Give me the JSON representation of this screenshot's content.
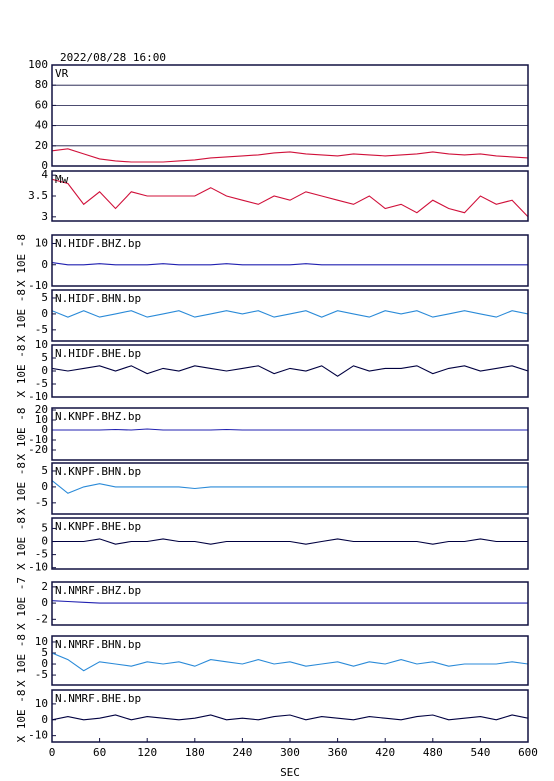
{
  "chart_data": [
    {
      "type": "line",
      "title": "2022/08/28 16:00",
      "label": "VR",
      "color": "#d0103a",
      "grid": true,
      "xlim": [
        0,
        600
      ],
      "ylim": [
        0,
        100
      ],
      "yticks": [
        0,
        20,
        40,
        60,
        80,
        100
      ],
      "x": [
        0,
        20,
        40,
        60,
        80,
        100,
        120,
        140,
        160,
        180,
        200,
        220,
        240,
        260,
        280,
        300,
        320,
        340,
        360,
        380,
        400,
        420,
        440,
        460,
        480,
        500,
        520,
        540,
        560,
        580,
        600
      ],
      "values": [
        15,
        17,
        12,
        7,
        5,
        4,
        4,
        4,
        5,
        6,
        8,
        9,
        10,
        11,
        13,
        14,
        12,
        11,
        10,
        12,
        11,
        10,
        11,
        12,
        14,
        12,
        11,
        12,
        10,
        9,
        8
      ]
    },
    {
      "type": "line",
      "label": "Mw",
      "color": "#d0103a",
      "xlim": [
        0,
        600
      ],
      "ylim": [
        2.9,
        4.1
      ],
      "yticks": [
        3.0,
        3.5,
        4.0
      ],
      "x": [
        0,
        20,
        40,
        60,
        80,
        100,
        120,
        140,
        160,
        180,
        200,
        220,
        240,
        260,
        280,
        300,
        320,
        340,
        360,
        380,
        400,
        420,
        440,
        460,
        480,
        500,
        520,
        540,
        560,
        580,
        600
      ],
      "values": [
        3.9,
        3.8,
        3.3,
        3.6,
        3.2,
        3.6,
        3.5,
        3.5,
        3.5,
        3.5,
        3.7,
        3.5,
        3.4,
        3.3,
        3.5,
        3.4,
        3.6,
        3.5,
        3.4,
        3.3,
        3.5,
        3.2,
        3.3,
        3.1,
        3.4,
        3.2,
        3.1,
        3.5,
        3.3,
        3.4,
        3.0
      ]
    },
    {
      "type": "line",
      "label": "N.HIDF.BHZ.bp",
      "y_label": "X 10E -8",
      "color": "#2020b0",
      "xlim": [
        0,
        600
      ],
      "ylim": [
        -10,
        14
      ],
      "yticks": [
        -10,
        0,
        10
      ],
      "x": [
        0,
        20,
        40,
        60,
        80,
        100,
        120,
        140,
        160,
        180,
        200,
        220,
        240,
        260,
        280,
        300,
        320,
        340,
        360,
        380,
        400,
        420,
        440,
        460,
        480,
        500,
        520,
        540,
        560,
        580,
        600
      ],
      "values": [
        1,
        0,
        0,
        0.5,
        0,
        0,
        0,
        0.5,
        0,
        0,
        0,
        0.5,
        0,
        0,
        0,
        0,
        0.5,
        0,
        0,
        0,
        0,
        0,
        0,
        0,
        0,
        0,
        0,
        0,
        0,
        0,
        0
      ]
    },
    {
      "type": "line",
      "label": "N.HIDF.BHN.bp",
      "y_label": "X 10E -8",
      "color": "#2a8ad8",
      "xlim": [
        0,
        600
      ],
      "ylim": [
        -8.5,
        7.5
      ],
      "yticks": [
        -5,
        0,
        5
      ],
      "x": [
        0,
        20,
        40,
        60,
        80,
        100,
        120,
        140,
        160,
        180,
        200,
        220,
        240,
        260,
        280,
        300,
        320,
        340,
        360,
        380,
        400,
        420,
        440,
        460,
        480,
        500,
        520,
        540,
        560,
        580,
        600
      ],
      "values": [
        1,
        -1,
        1,
        -1,
        0,
        1,
        -1,
        0,
        1,
        -1,
        0,
        1,
        0,
        1,
        -1,
        0,
        1,
        -1,
        1,
        0,
        -1,
        1,
        0,
        1,
        -1,
        0,
        1,
        0,
        -1,
        1,
        0
      ]
    },
    {
      "type": "line",
      "label": "N.HIDF.BHE.bp",
      "y_label": "X 10E -8",
      "color": "#000040",
      "xlim": [
        0,
        600
      ],
      "ylim": [
        -10,
        10
      ],
      "yticks": [
        -10,
        -5,
        0,
        5,
        10
      ],
      "x": [
        0,
        20,
        40,
        60,
        80,
        100,
        120,
        140,
        160,
        180,
        200,
        220,
        240,
        260,
        280,
        300,
        320,
        340,
        360,
        380,
        400,
        420,
        440,
        460,
        480,
        500,
        520,
        540,
        560,
        580,
        600
      ],
      "values": [
        1,
        0,
        1,
        2,
        0,
        2,
        -1,
        1,
        0,
        2,
        1,
        0,
        1,
        2,
        -1,
        1,
        0,
        2,
        -2,
        2,
        0,
        1,
        1,
        2,
        -1,
        1,
        2,
        0,
        1,
        2,
        0
      ]
    },
    {
      "type": "line",
      "label": "N.KNPF.BHZ.bp",
      "y_label": "X 10E -8",
      "color": "#2020b0",
      "xlim": [
        0,
        600
      ],
      "ylim": [
        -30,
        22
      ],
      "yticks": [
        -20,
        -10,
        0,
        10,
        20
      ],
      "x": [
        0,
        20,
        40,
        60,
        80,
        100,
        120,
        140,
        160,
        180,
        200,
        220,
        240,
        260,
        280,
        300,
        320,
        340,
        360,
        380,
        400,
        420,
        440,
        460,
        480,
        500,
        520,
        540,
        560,
        580,
        600
      ],
      "values": [
        0,
        0,
        0,
        0,
        0.5,
        0,
        1,
        0,
        0,
        0,
        0,
        0.5,
        0,
        0,
        0,
        0,
        0,
        0,
        0,
        0,
        0,
        0,
        0,
        0,
        0,
        0,
        0,
        0,
        0,
        0,
        0
      ]
    },
    {
      "type": "line",
      "label": "N.KNPF.BHN.bp",
      "y_label": "X 10E -8",
      "color": "#2a8ad8",
      "xlim": [
        0,
        600
      ],
      "ylim": [
        -8.5,
        7.5
      ],
      "yticks": [
        -5,
        0,
        5
      ],
      "x": [
        0,
        20,
        40,
        60,
        80,
        100,
        120,
        140,
        160,
        180,
        200,
        220,
        240,
        260,
        280,
        300,
        320,
        340,
        360,
        380,
        400,
        420,
        440,
        460,
        480,
        500,
        520,
        540,
        560,
        580,
        600
      ],
      "values": [
        2,
        -2,
        0,
        1,
        0,
        0,
        0,
        0,
        0,
        -0.5,
        0,
        0,
        0,
        0,
        0,
        0,
        0,
        0,
        0,
        0,
        0,
        0,
        0,
        0,
        0,
        0,
        0,
        0,
        0,
        0,
        0
      ]
    },
    {
      "type": "line",
      "label": "N.KNPF.BHE.bp",
      "y_label": "X 10E -8",
      "color": "#000040",
      "xlim": [
        0,
        600
      ],
      "ylim": [
        -10.5,
        9
      ],
      "yticks": [
        -10,
        -5,
        0,
        5
      ],
      "x": [
        0,
        20,
        40,
        60,
        80,
        100,
        120,
        140,
        160,
        180,
        200,
        220,
        240,
        260,
        280,
        300,
        320,
        340,
        360,
        380,
        400,
        420,
        440,
        460,
        480,
        500,
        520,
        540,
        560,
        580,
        600
      ],
      "values": [
        0,
        0,
        0,
        1,
        -1,
        0,
        0,
        1,
        0,
        0,
        -1,
        0,
        0,
        0,
        0,
        0,
        -1,
        0,
        1,
        0,
        0,
        0,
        0,
        0,
        -1,
        0,
        0,
        1,
        0,
        0,
        0
      ]
    },
    {
      "type": "line",
      "label": "N.NMRF.BHZ.bp",
      "y_label": "X 10E -7",
      "color": "#2020b0",
      "xlim": [
        0,
        600
      ],
      "ylim": [
        -2.7,
        2.6
      ],
      "yticks": [
        -2,
        0,
        2
      ],
      "x": [
        0,
        20,
        40,
        60,
        80,
        100,
        120,
        140,
        160,
        180,
        200,
        220,
        240,
        260,
        280,
        300,
        320,
        340,
        360,
        380,
        400,
        420,
        440,
        460,
        480,
        500,
        520,
        540,
        560,
        580,
        600
      ],
      "values": [
        0.3,
        0.2,
        0.1,
        0,
        0,
        0,
        0,
        0,
        0,
        0,
        0,
        0,
        0,
        0,
        0,
        0,
        0,
        0,
        0,
        0,
        0,
        0,
        0,
        0,
        0,
        0,
        0,
        0,
        0,
        0,
        0
      ]
    },
    {
      "type": "line",
      "label": "N.NMRF.BHN.bp",
      "y_label": "X 10E -8",
      "color": "#2a8ad8",
      "xlim": [
        0,
        600
      ],
      "ylim": [
        -9.5,
        12.7
      ],
      "yticks": [
        -5,
        0,
        5,
        10
      ],
      "x": [
        0,
        20,
        40,
        60,
        80,
        100,
        120,
        140,
        160,
        180,
        200,
        220,
        240,
        260,
        280,
        300,
        320,
        340,
        360,
        380,
        400,
        420,
        440,
        460,
        480,
        500,
        520,
        540,
        560,
        580,
        600
      ],
      "values": [
        5,
        2,
        -3,
        1,
        0,
        -1,
        1,
        0,
        1,
        -1,
        2,
        1,
        0,
        2,
        0,
        1,
        -1,
        0,
        1,
        -1,
        1,
        0,
        2,
        0,
        1,
        -1,
        0,
        0,
        0,
        1,
        0
      ]
    },
    {
      "type": "line",
      "label": "N.NMRF.BHE.bp",
      "y_label": "X 10E -8",
      "x_label": "SEC",
      "color": "#000040",
      "xlim": [
        0,
        600
      ],
      "ylim": [
        -14,
        18.75
      ],
      "yticks": [
        -10,
        0,
        10
      ],
      "xticks": [
        0,
        60,
        120,
        180,
        240,
        300,
        360,
        420,
        480,
        540,
        600
      ],
      "x": [
        0,
        20,
        40,
        60,
        80,
        100,
        120,
        140,
        160,
        180,
        200,
        220,
        240,
        260,
        280,
        300,
        320,
        340,
        360,
        380,
        400,
        420,
        440,
        460,
        480,
        500,
        520,
        540,
        560,
        580,
        600
      ],
      "values": [
        0,
        2,
        0,
        1,
        3,
        0,
        2,
        1,
        0,
        1,
        3,
        0,
        1,
        0,
        2,
        3,
        0,
        2,
        1,
        0,
        2,
        1,
        0,
        2,
        3,
        0,
        1,
        2,
        0,
        3,
        1
      ]
    }
  ]
}
